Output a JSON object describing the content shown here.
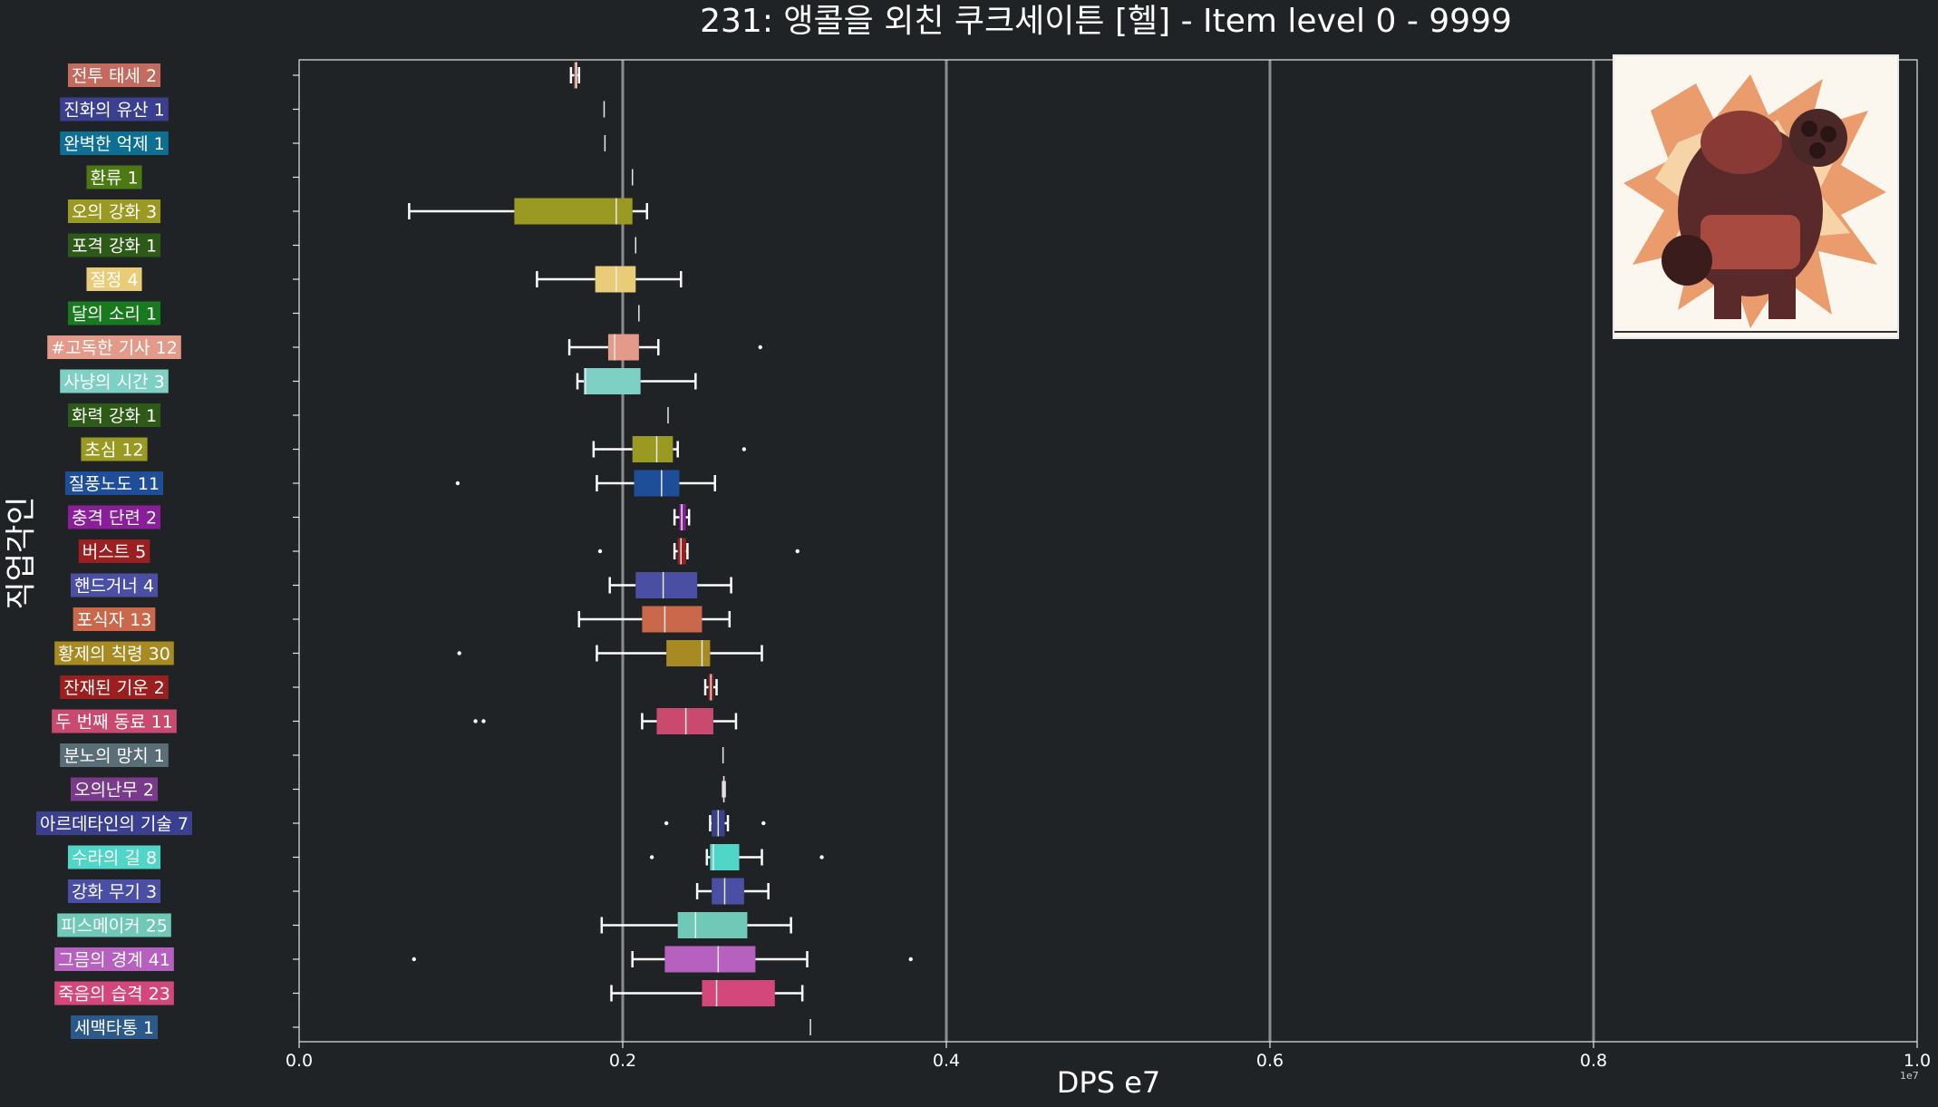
{
  "page": {
    "title": "231: 앵콜을 외친 쿠크세이튼 [헬] - Item level 0 - 9999",
    "xlabel": "DPS e7",
    "ylabel": "직업각인",
    "sci_note": "1e7"
  },
  "thumbnail": {
    "icon": "kouku-saton-boss-portrait-icon"
  },
  "chart_data": {
    "type": "box",
    "title": "231: 앵콜을 외친 쿠크세이튼 [헬] - Item level 0 - 9999",
    "xlabel": "DPS e7",
    "ylabel": "직업각인",
    "xlim": [
      0.0,
      1.0
    ],
    "xticks": [
      "0.0",
      "0.2",
      "0.4",
      "0.6",
      "0.8",
      "1.0"
    ],
    "grid": "vertical lines at 0.2 intervals",
    "categories": [
      {
        "label": "전투 태세 2",
        "color": "#c26b5e",
        "min": 0.168,
        "q1": 0.17,
        "median": 0.1712,
        "q3": 0.172,
        "max": 0.173,
        "outliers": []
      },
      {
        "label": "진화의 유산 1",
        "color": "#3b3f8f",
        "min": 0.1885,
        "q1": 0.1885,
        "median": 0.1885,
        "q3": 0.1885,
        "max": 0.1885,
        "outliers": []
      },
      {
        "label": "완벽한 억제 1",
        "color": "#0e6f94",
        "min": 0.189,
        "q1": 0.189,
        "median": 0.189,
        "q3": 0.189,
        "max": 0.189,
        "outliers": []
      },
      {
        "label": "환류 1",
        "color": "#4b7a12",
        "min": 0.206,
        "q1": 0.206,
        "median": 0.206,
        "q3": 0.206,
        "max": 0.206,
        "outliers": []
      },
      {
        "label": "오의 강화 3",
        "color": "#9a9a22",
        "min": 0.068,
        "q1": 0.133,
        "median": 0.196,
        "q3": 0.206,
        "max": 0.215,
        "outliers": []
      },
      {
        "label": "포격 강화 1",
        "color": "#2d5a16",
        "min": 0.208,
        "q1": 0.208,
        "median": 0.208,
        "q3": 0.208,
        "max": 0.208,
        "outliers": []
      },
      {
        "label": "절정 4",
        "color": "#e8cc78",
        "min": 0.147,
        "q1": 0.183,
        "median": 0.196,
        "q3": 0.208,
        "max": 0.236,
        "outliers": []
      },
      {
        "label": "달의 소리 1",
        "color": "#187a1e",
        "min": 0.21,
        "q1": 0.21,
        "median": 0.21,
        "q3": 0.21,
        "max": 0.21,
        "outliers": []
      },
      {
        "label": "#고독한 기사 12",
        "color": "#e39a88",
        "min": 0.167,
        "q1": 0.191,
        "median": 0.195,
        "q3": 0.21,
        "max": 0.222,
        "outliers": [
          0.285
        ]
      },
      {
        "label": "사냥의 시간 3",
        "color": "#7ecfc4",
        "min": 0.172,
        "q1": 0.176,
        "median": 0.177,
        "q3": 0.211,
        "max": 0.245,
        "outliers": []
      },
      {
        "label": "화력 강화 1",
        "color": "#2d5a16",
        "min": 0.228,
        "q1": 0.228,
        "median": 0.228,
        "q3": 0.228,
        "max": 0.228,
        "outliers": []
      },
      {
        "label": "초심 12",
        "color": "#9a9a22",
        "min": 0.182,
        "q1": 0.206,
        "median": 0.221,
        "q3": 0.231,
        "max": 0.234,
        "outliers": [
          0.275
        ]
      },
      {
        "label": "질풍노도 11",
        "color": "#1f4e99",
        "min": 0.184,
        "q1": 0.207,
        "median": 0.224,
        "q3": 0.235,
        "max": 0.257,
        "outliers": [
          0.098
        ]
      },
      {
        "label": "충격 단련 2",
        "color": "#8a1d99",
        "min": 0.232,
        "q1": 0.235,
        "median": 0.2365,
        "q3": 0.239,
        "max": 0.241,
        "outliers": []
      },
      {
        "label": "버스트 5",
        "color": "#9b1f1f",
        "min": 0.232,
        "q1": 0.234,
        "median": 0.236,
        "q3": 0.239,
        "max": 0.24,
        "outliers": [
          0.186,
          0.308
        ]
      },
      {
        "label": "핸드거너 4",
        "color": "#4b4fa3",
        "min": 0.192,
        "q1": 0.208,
        "median": 0.225,
        "q3": 0.246,
        "max": 0.267,
        "outliers": []
      },
      {
        "label": "포식자 13",
        "color": "#c9684a",
        "min": 0.173,
        "q1": 0.212,
        "median": 0.226,
        "q3": 0.249,
        "max": 0.266,
        "outliers": []
      },
      {
        "label": "황제의 칙령 30",
        "color": "#a88a22",
        "min": 0.184,
        "q1": 0.227,
        "median": 0.249,
        "q3": 0.254,
        "max": 0.286,
        "outliers": [
          0.099
        ]
      },
      {
        "label": "잔재된 기운 2",
        "color": "#9b1f1f",
        "min": 0.251,
        "q1": 0.253,
        "median": 0.2545,
        "q3": 0.256,
        "max": 0.258,
        "outliers": []
      },
      {
        "label": "두 번째 동료 11",
        "color": "#c94a6e",
        "min": 0.212,
        "q1": 0.221,
        "median": 0.239,
        "q3": 0.256,
        "max": 0.27,
        "outliers": [
          0.109,
          0.114
        ]
      },
      {
        "label": "분노의 망치 1",
        "color": "#5a6e78",
        "min": 0.262,
        "q1": 0.262,
        "median": 0.262,
        "q3": 0.262,
        "max": 0.262,
        "outliers": []
      },
      {
        "label": "오의난무 2",
        "color": "#7a3a8a",
        "min": 0.262,
        "q1": 0.262,
        "median": 0.2625,
        "q3": 0.263,
        "max": 0.263,
        "outliers": []
      },
      {
        "label": "아르데타인의 기술 7",
        "color": "#3b3f8f",
        "min": 0.254,
        "q1": 0.255,
        "median": 0.259,
        "q3": 0.263,
        "max": 0.265,
        "outliers": [
          0.227,
          0.287
        ]
      },
      {
        "label": "수라의 길 8",
        "color": "#4fd6c6",
        "min": 0.252,
        "q1": 0.254,
        "median": 0.256,
        "q3": 0.272,
        "max": 0.286,
        "outliers": [
          0.218,
          0.323
        ]
      },
      {
        "label": "강화 무기 3",
        "color": "#4b4fa3",
        "min": 0.246,
        "q1": 0.255,
        "median": 0.263,
        "q3": 0.275,
        "max": 0.29,
        "outliers": []
      },
      {
        "label": "피스메이커 25",
        "color": "#6fc9b6",
        "min": 0.187,
        "q1": 0.234,
        "median": 0.245,
        "q3": 0.277,
        "max": 0.304,
        "outliers": []
      },
      {
        "label": "그믐의 경계 41",
        "color": "#b660c0",
        "min": 0.206,
        "q1": 0.226,
        "median": 0.259,
        "q3": 0.282,
        "max": 0.314,
        "outliers": [
          0.071,
          0.378
        ]
      },
      {
        "label": "죽음의 습격 23",
        "color": "#d4477a",
        "min": 0.193,
        "q1": 0.249,
        "median": 0.258,
        "q3": 0.294,
        "max": 0.311,
        "outliers": []
      },
      {
        "label": "세맥타통 1",
        "color": "#2b5a8a",
        "min": 0.316,
        "q1": 0.316,
        "median": 0.316,
        "q3": 0.316,
        "max": 0.316,
        "outliers": []
      }
    ]
  }
}
